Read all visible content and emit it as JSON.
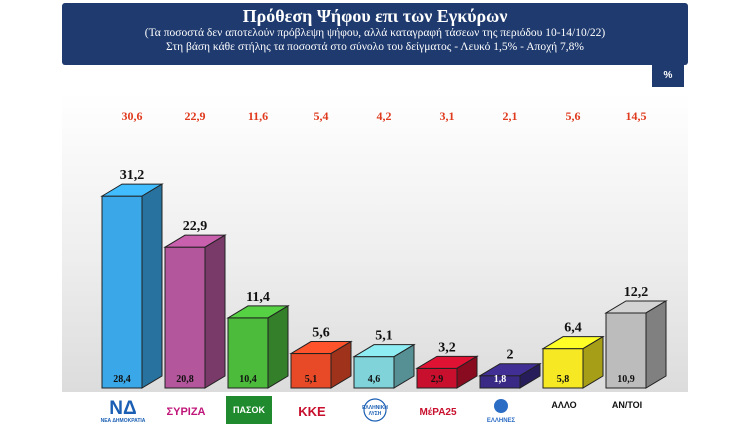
{
  "header": {
    "title": "Πρόθεση Ψήφου επι των Εγκύρων",
    "subtitle1": "(Τα ποσοστά δεν αποτελούν πρόβλεψη ψήφου, αλλά καταγραφή τάσεων της περιόδου  10-14/10/22)",
    "subtitle2": "Στη βάση κάθε στήλης τα ποσοστά στο σύνολο του δείγματος - Λευκό 1,5% - Αποχή 7,8%"
  },
  "unit_badge": "%",
  "chart_data": {
    "type": "bar",
    "categories": [
      "ΝΔ",
      "ΣΥΡΙΖΑ",
      "ΠΑΣΟΚ",
      "ΚΚΕ",
      "ΕΛΛΗΝΙΚΗ ΛΥΣΗ",
      "ΜέΡΑ25",
      "ΕΛΛΗΝΕΣ",
      "ΑΛΛΟ",
      "ΑΝ/ΤΟΙ"
    ],
    "category_logo_text": [
      "ΝΔ\nΝΕΑ ΔΗΜΟΚΡΑΤΙΑ",
      "ΣΥΡΙΖΑ",
      "ΠΑΣΟΚ",
      "ΚΚΕ",
      "ΕΛΛΗΝΙΚΗ\nΛΥΣΗ",
      "ΜέΡΑ25",
      "ΕΛΛΗΝΕΣ",
      "ΑΛΛΟ",
      "ΑΝ/ΤΟΙ"
    ],
    "series": [
      {
        "values": [
          31.2,
          22.9,
          11.4,
          5.6,
          5.1,
          3.2,
          2,
          6.4,
          12.2
        ],
        "labels": [
          "31,2",
          "22,9",
          "11,4",
          "5,6",
          "5,1",
          "3,2",
          "2",
          "6,4",
          "12,2"
        ]
      },
      {
        "values": [
          28.4,
          20.8,
          10.4,
          5.1,
          4.6,
          2.9,
          1.8,
          5.8,
          10.9
        ],
        "labels": [
          "28,4",
          "20,8",
          "10,4",
          "5,1",
          "4,6",
          "2,9",
          "1,8",
          "5,8",
          "10,9"
        ]
      },
      {
        "values": [
          30.6,
          22.9,
          11.6,
          5.4,
          4.2,
          3.1,
          2.1,
          5.6,
          14.5
        ],
        "labels": [
          "30,6",
          "22,9",
          "11,6",
          "5,4",
          "4,2",
          "3,1",
          "2,1",
          "5,6",
          "14,5"
        ]
      }
    ],
    "colors": [
      "#3aa8e8",
      "#b3569b",
      "#4cbb3c",
      "#e84a27",
      "#7fd3d9",
      "#c8102e",
      "#3a2a86",
      "#f6e823",
      "#bcbcbc"
    ],
    "top_label_color": "#e03a1e",
    "ylim": [
      0,
      35
    ]
  }
}
